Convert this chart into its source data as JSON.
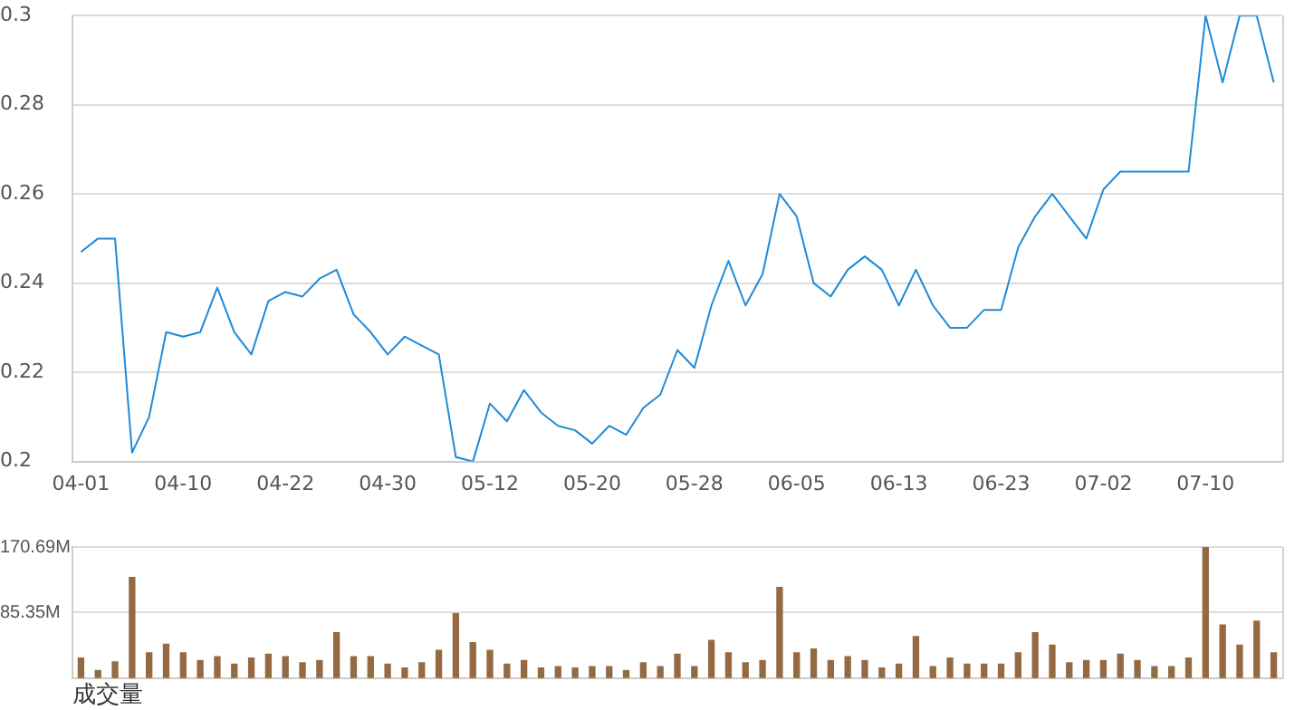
{
  "chart_data": [
    {
      "type": "line",
      "categories": [
        "04-01",
        null,
        null,
        null,
        null,
        null,
        "04-10",
        null,
        null,
        null,
        null,
        null,
        "04-22",
        null,
        null,
        null,
        null,
        null,
        "04-30",
        null,
        null,
        null,
        null,
        null,
        "05-12",
        null,
        null,
        null,
        null,
        null,
        "05-20",
        null,
        null,
        null,
        null,
        null,
        "05-28",
        null,
        null,
        null,
        null,
        null,
        "06-05",
        null,
        null,
        null,
        null,
        null,
        "06-13",
        null,
        null,
        null,
        null,
        null,
        "06-23",
        null,
        null,
        null,
        null,
        null,
        "07-02",
        null,
        null,
        null,
        null,
        null,
        "07-10",
        null,
        null,
        null,
        null
      ],
      "series": [
        {
          "color": "#1f8ad8",
          "values": [
            0.247,
            0.25,
            0.25,
            0.202,
            0.21,
            0.229,
            0.228,
            0.229,
            0.239,
            0.229,
            0.224,
            0.236,
            0.238,
            0.237,
            0.241,
            0.243,
            0.233,
            0.229,
            0.224,
            0.228,
            0.226,
            0.224,
            0.201,
            0.2,
            0.213,
            0.209,
            0.216,
            0.211,
            0.208,
            0.207,
            0.204,
            0.208,
            0.206,
            0.212,
            0.215,
            0.225,
            0.221,
            0.235,
            0.245,
            0.235,
            0.242,
            0.26,
            0.255,
            0.24,
            0.237,
            0.243,
            0.246,
            0.243,
            0.235,
            0.243,
            0.235,
            0.23,
            0.23,
            0.234,
            0.234,
            0.248,
            0.255,
            0.26,
            0.255,
            0.25,
            0.261,
            0.265,
            0.265,
            0.265,
            0.265,
            0.265,
            0.3,
            0.285,
            0.3,
            0.3,
            0.285
          ]
        }
      ],
      "ylim": [
        0.2,
        0.3
      ],
      "yticks": [
        0.2,
        0.22,
        0.24,
        0.26,
        0.28,
        0.3
      ],
      "grid": "y",
      "legend": false,
      "marker": "none"
    },
    {
      "type": "bar",
      "categories": [
        null,
        null,
        null,
        null,
        null,
        null,
        null,
        null,
        null,
        null,
        null,
        null,
        null,
        null,
        null,
        null,
        null,
        null,
        null,
        null,
        null,
        null,
        null,
        null,
        null,
        null,
        null,
        null,
        null,
        null,
        null,
        null,
        null,
        null,
        null,
        null,
        null,
        null,
        null,
        null,
        null,
        null,
        null,
        null,
        null,
        null,
        null,
        null,
        null,
        null,
        null,
        null,
        null,
        null,
        null,
        null,
        null,
        null,
        null,
        null,
        null,
        null,
        null,
        null,
        null,
        null,
        null,
        null,
        null,
        null,
        null
      ],
      "values": [
        26,
        10,
        21,
        131,
        33,
        44,
        33,
        23,
        28,
        18,
        26,
        31,
        28,
        20,
        23,
        59,
        28,
        28,
        18,
        13,
        20,
        36,
        84,
        46,
        36,
        18,
        23,
        13,
        15,
        13,
        15,
        15,
        10,
        20,
        15,
        31,
        15,
        49,
        33,
        20,
        23,
        118,
        33,
        38,
        23,
        28,
        23,
        13,
        18,
        54,
        15,
        26,
        18,
        18,
        18,
        33,
        59,
        43,
        20,
        23,
        23,
        31,
        23,
        15,
        15,
        26,
        170,
        69,
        43,
        74,
        33
      ],
      "color": "#956a43",
      "ylim": [
        0,
        170.69
      ],
      "yticks": [
        {
          "value": 85.35,
          "label": "85.35M"
        },
        {
          "value": 170.69,
          "label": "170.69M"
        }
      ],
      "grid": "y",
      "legend": false,
      "tick_labels": "y",
      "xlabel": "成交量"
    }
  ]
}
